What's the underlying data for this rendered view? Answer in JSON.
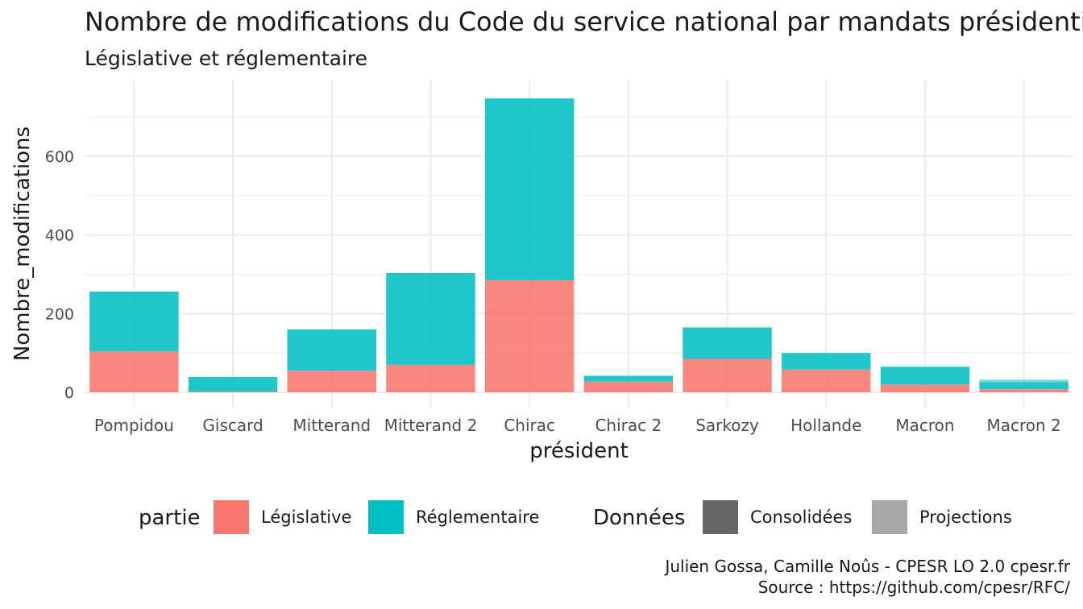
{
  "title": "Nombre de modifications du Code du service national par mandats présidentiels",
  "subtitle": "Législative et réglementaire",
  "caption_line1": "Julien Gossa, Camille Noûs - CPESR LO 2.0 cpesr.fr",
  "caption_line2": "Source : https://github.com/cpesr/RFC/",
  "chart_data": {
    "type": "bar",
    "stacked": true,
    "xlabel": "président",
    "ylabel": "Nombre_modifications",
    "ylim": [
      0,
      740
    ],
    "yticks": [
      0,
      200,
      400,
      600
    ],
    "grid": true,
    "legend_position": "bottom",
    "categories": [
      "Pompidou",
      "Giscard",
      "Mitterand",
      "Mitterand 2",
      "Chirac",
      "Chirac 2",
      "Sarkozy",
      "Hollande",
      "Macron",
      "Macron 2"
    ],
    "series": [
      {
        "name": "Législative",
        "color": "#F8766D",
        "values": [
          104,
          2,
          55,
          70,
          285,
          27,
          85,
          58,
          20,
          8
        ]
      },
      {
        "name": "Réglementaire",
        "color": "#00BFC4",
        "values": [
          152,
          37,
          105,
          233,
          462,
          15,
          80,
          42,
          45,
          18
        ]
      }
    ],
    "projections": {
      "Macron 2": {
        "Législative": 2,
        "Réglementaire": 4
      }
    },
    "legend": {
      "partie": {
        "title": "partie",
        "items": [
          {
            "label": "Législative",
            "color": "#F8766D"
          },
          {
            "label": "Réglementaire",
            "color": "#00BFC4"
          }
        ]
      },
      "donnees": {
        "title": "Données",
        "items": [
          {
            "label": "Consolidées",
            "color": "#666666"
          },
          {
            "label": "Projections",
            "color": "#a9a9a9"
          }
        ]
      }
    }
  }
}
